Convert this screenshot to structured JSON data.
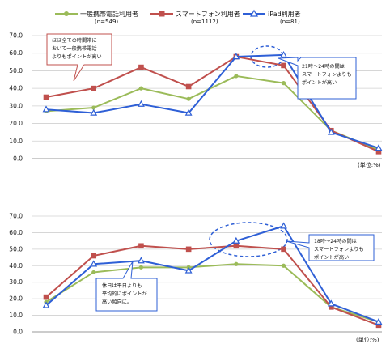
{
  "legend": {
    "items": [
      {
        "label": "一般携帯電話利用者",
        "n": "(n=549)",
        "color": "#9bbb59",
        "marker": "circle"
      },
      {
        "label": "スマートフォン利用者",
        "n": "(n=1112)",
        "color": "#c0504d",
        "marker": "square"
      },
      {
        "label": "iPad利用者",
        "n": "(n=81)",
        "color": "#2e5fd6",
        "marker": "triangle"
      }
    ]
  },
  "chart_data": [
    {
      "type": "line",
      "ylim": [
        0,
        70
      ],
      "yticks": [
        "0.0",
        "10.0",
        "20.0",
        "30.0",
        "40.0",
        "50.0",
        "60.0",
        "70.0"
      ],
      "unit": "(単位:%)",
      "grid": true,
      "series": [
        {
          "name": "一般携帯電話利用者",
          "values": [
            27,
            29,
            40,
            34,
            47,
            43,
            16,
            5
          ]
        },
        {
          "name": "スマートフォン利用者",
          "values": [
            35,
            40,
            52,
            41,
            58,
            53,
            16,
            4
          ]
        },
        {
          "name": "iPad利用者",
          "values": [
            28,
            26,
            31,
            26,
            58,
            59,
            15,
            6
          ]
        }
      ],
      "callouts": [
        {
          "text_lines": [
            "ほぼ全ての時間帯に",
            "おいて一般携帯電話",
            "よりもポイントが高い"
          ]
        },
        {
          "text_lines": [
            "21時～24時の間は",
            "スマートフォンよりも",
            "ポイントが高い"
          ]
        }
      ]
    },
    {
      "type": "line",
      "ylim": [
        0,
        70
      ],
      "yticks": [
        "0.0",
        "10.0",
        "20.0",
        "30.0",
        "40.0",
        "50.0",
        "60.0",
        "70.0"
      ],
      "unit": "(単位:%)",
      "grid": true,
      "series": [
        {
          "name": "一般携帯電話利用者",
          "values": [
            18,
            36,
            39,
            39,
            41,
            40,
            15,
            6
          ]
        },
        {
          "name": "スマートフォン利用者",
          "values": [
            21,
            46,
            52,
            50,
            52,
            50,
            15,
            4
          ]
        },
        {
          "name": "iPad利用者",
          "values": [
            16,
            41,
            43,
            37,
            55,
            64,
            17,
            6
          ]
        }
      ],
      "callouts": [
        {
          "text_lines": [
            "休日は平日よりも",
            "平均的にポイントが",
            "高い傾向に。"
          ]
        },
        {
          "text_lines": [
            "18時～24時の間は",
            "スマートフォンよりも",
            "ポイントが高い"
          ]
        }
      ]
    }
  ]
}
